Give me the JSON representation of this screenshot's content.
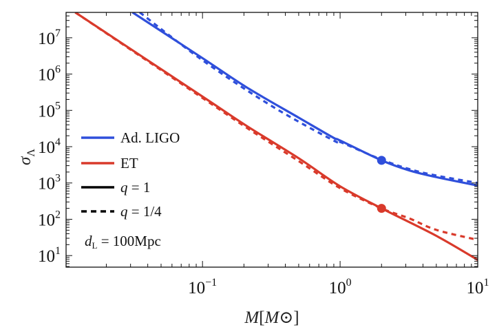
{
  "chart_data": {
    "type": "line",
    "title": "",
    "xlabel": "M[M⊙]",
    "xlabel_main": "M",
    "xlabel_unit": "M⊙",
    "ylabel": "σΛ",
    "ylabel_main": "σ",
    "ylabel_sub": "Λ",
    "xscale": "log",
    "yscale": "log",
    "xlim": [
      0.0102,
      10
    ],
    "ylim": [
      4.8,
      50000000.0
    ],
    "grid": false,
    "legend_position": "bottom-left",
    "x_ticks": [
      {
        "base": "10",
        "exp": "−1",
        "value": 0.1
      },
      {
        "base": "10",
        "exp": "0",
        "value": 1
      },
      {
        "base": "10",
        "exp": "1",
        "value": 10
      }
    ],
    "y_ticks": [
      {
        "base": "10",
        "exp": "1",
        "value": 10
      },
      {
        "base": "10",
        "exp": "2",
        "value": 100
      },
      {
        "base": "10",
        "exp": "3",
        "value": 1000
      },
      {
        "base": "10",
        "exp": "4",
        "value": 10000
      },
      {
        "base": "10",
        "exp": "5",
        "value": 100000
      },
      {
        "base": "10",
        "exp": "6",
        "value": 1000000
      },
      {
        "base": "10",
        "exp": "7",
        "value": 10000000
      }
    ],
    "colors": {
      "ligo": "#2f4fdb",
      "et": "#d93a2b"
    },
    "series": [
      {
        "detector": "Ad. LIGO",
        "q": "1",
        "style": "solid",
        "color": "#2f4fdb",
        "x": [
          0.031,
          0.1,
          0.21,
          0.5,
          0.89,
          1,
          2,
          3.2,
          5,
          10
        ],
        "y": [
          50000000.0,
          2750000.0,
          427000.0,
          63000.0,
          17800.0,
          14800.0,
          4200.0,
          2200.0,
          1450.0,
          850
        ]
      },
      {
        "detector": "Ad. LIGO",
        "q": "1/4",
        "style": "dashed",
        "color": "#2f4fdb",
        "x": [
          0.035,
          0.1,
          0.32,
          0.89,
          1,
          2,
          3.2,
          5,
          10
        ],
        "y": [
          50000000.0,
          2400000.0,
          130000.0,
          15000.0,
          13500.0,
          4400.0,
          2400.0,
          1600.0,
          1000
        ]
      },
      {
        "detector": "ET",
        "q": "1",
        "style": "solid",
        "color": "#d93a2b",
        "x": [
          0.0119,
          0.1,
          0.21,
          0.5,
          1,
          2,
          5,
          10
        ],
        "y": [
          50000000.0,
          240000.0,
          37000.0,
          4800.0,
          810,
          200,
          35,
          7.6
        ]
      },
      {
        "detector": "ET",
        "q": "1/4",
        "style": "dashed",
        "color": "#d93a2b",
        "x": [
          0.0119,
          0.1,
          0.21,
          0.5,
          1,
          2,
          3.2,
          5,
          10
        ],
        "y": [
          50000000.0,
          220000.0,
          33000.0,
          4000.0,
          720,
          200,
          105,
          51,
          27
        ]
      }
    ],
    "markers": [
      {
        "detector": "Ad. LIGO",
        "x": 2,
        "y": 4200,
        "color": "#2f4fdb"
      },
      {
        "detector": "ET",
        "x": 2,
        "y": 200,
        "color": "#d93a2b"
      }
    ],
    "legend": {
      "entries": [
        {
          "label": "Ad. LIGO",
          "color": "#2f4fdb",
          "style": "solid"
        },
        {
          "label": "ET",
          "color": "#d93a2b",
          "style": "solid"
        },
        {
          "label": "q = 1",
          "color": "#000000",
          "style": "solid"
        },
        {
          "label": "q = 1/4",
          "color": "#000000",
          "style": "dashed"
        }
      ],
      "annotation": "dL = 100Mpc",
      "annotation_main": "d",
      "annotation_sub": "L",
      "annotation_rest": " = 100Mpc"
    }
  }
}
